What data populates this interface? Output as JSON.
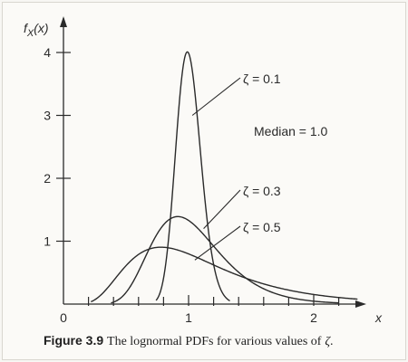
{
  "chart_data": {
    "type": "line",
    "ylabel": "f_X(x)",
    "xlabel": "x",
    "xlim": [
      0,
      2.4
    ],
    "ylim": [
      0,
      4.2
    ],
    "x_ticks": [
      "0",
      "1",
      "2"
    ],
    "y_ticks": [
      "1",
      "2",
      "3",
      "4"
    ],
    "annotation": "Median = 1.0",
    "series": [
      {
        "name": "ζ = 0.1",
        "zeta": 0.1,
        "median": 1.0
      },
      {
        "name": "ζ = 0.3",
        "zeta": 0.3,
        "median": 1.0
      },
      {
        "name": "ζ = 0.5",
        "zeta": 0.5,
        "median": 1.0
      }
    ]
  },
  "caption": {
    "figure": "Figure 3.9",
    "text": "The lognormal PDFs for various values of",
    "symbol": "ζ",
    "end": "."
  }
}
